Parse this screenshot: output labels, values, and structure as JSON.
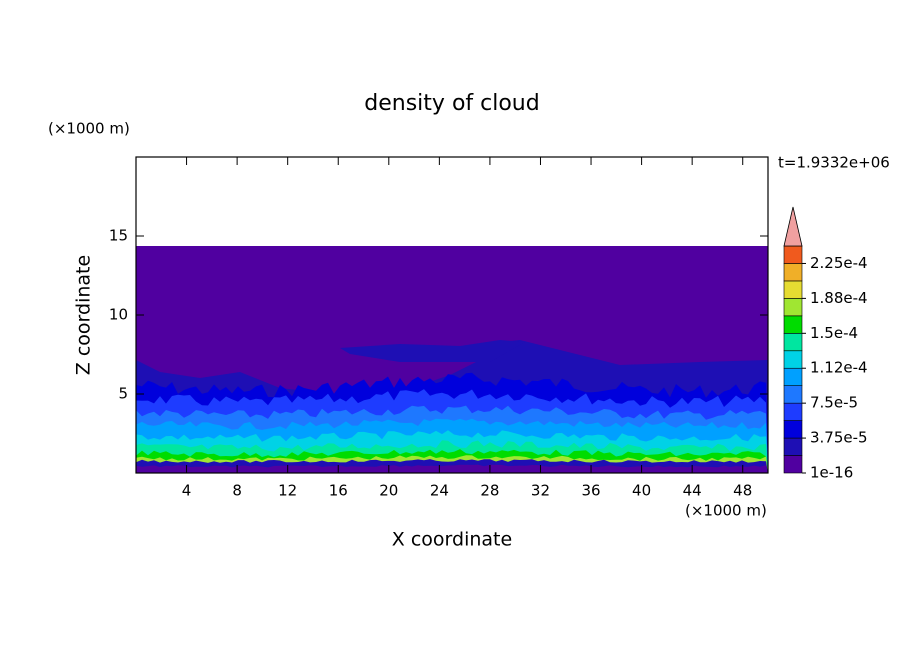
{
  "chart_data": {
    "type": "contour",
    "title": "density of cloud",
    "x_label": "X coordinate",
    "y_label": "Z coordinate",
    "x_unit": "(×1000 m)",
    "y_unit": "(×1000 m)",
    "annotation": "t=1.9332e+06",
    "xlim": [
      0,
      50
    ],
    "ylim": [
      0,
      20
    ],
    "xticks": [
      4,
      8,
      12,
      16,
      20,
      24,
      28,
      32,
      36,
      40,
      44,
      48
    ],
    "yticks": [
      5,
      10,
      15
    ],
    "colorbar": {
      "clim": [
        1e-16,
        0.00024375
      ],
      "ticks": [
        {
          "value": 1e-16,
          "label": "1e-16"
        },
        {
          "value": 3.75e-05,
          "label": "3.75e-5"
        },
        {
          "value": 7.5e-05,
          "label": "7.5e-5"
        },
        {
          "value": 0.0001125,
          "label": "1.12e-4"
        },
        {
          "value": 0.00015,
          "label": "1.5e-4"
        },
        {
          "value": 0.0001875,
          "label": "1.88e-4"
        },
        {
          "value": 0.000225,
          "label": "2.25e-4"
        }
      ],
      "colors": [
        "#5000a0",
        "#1e0fb4",
        "#0000dc",
        "#1e3cff",
        "#1e78ff",
        "#00a0ff",
        "#00d2e6",
        "#00e6a0",
        "#00dc00",
        "#a0e632",
        "#e6dc32",
        "#f0af28",
        "#f05a1e"
      ],
      "extend_color": "#f0a0a0"
    }
  }
}
